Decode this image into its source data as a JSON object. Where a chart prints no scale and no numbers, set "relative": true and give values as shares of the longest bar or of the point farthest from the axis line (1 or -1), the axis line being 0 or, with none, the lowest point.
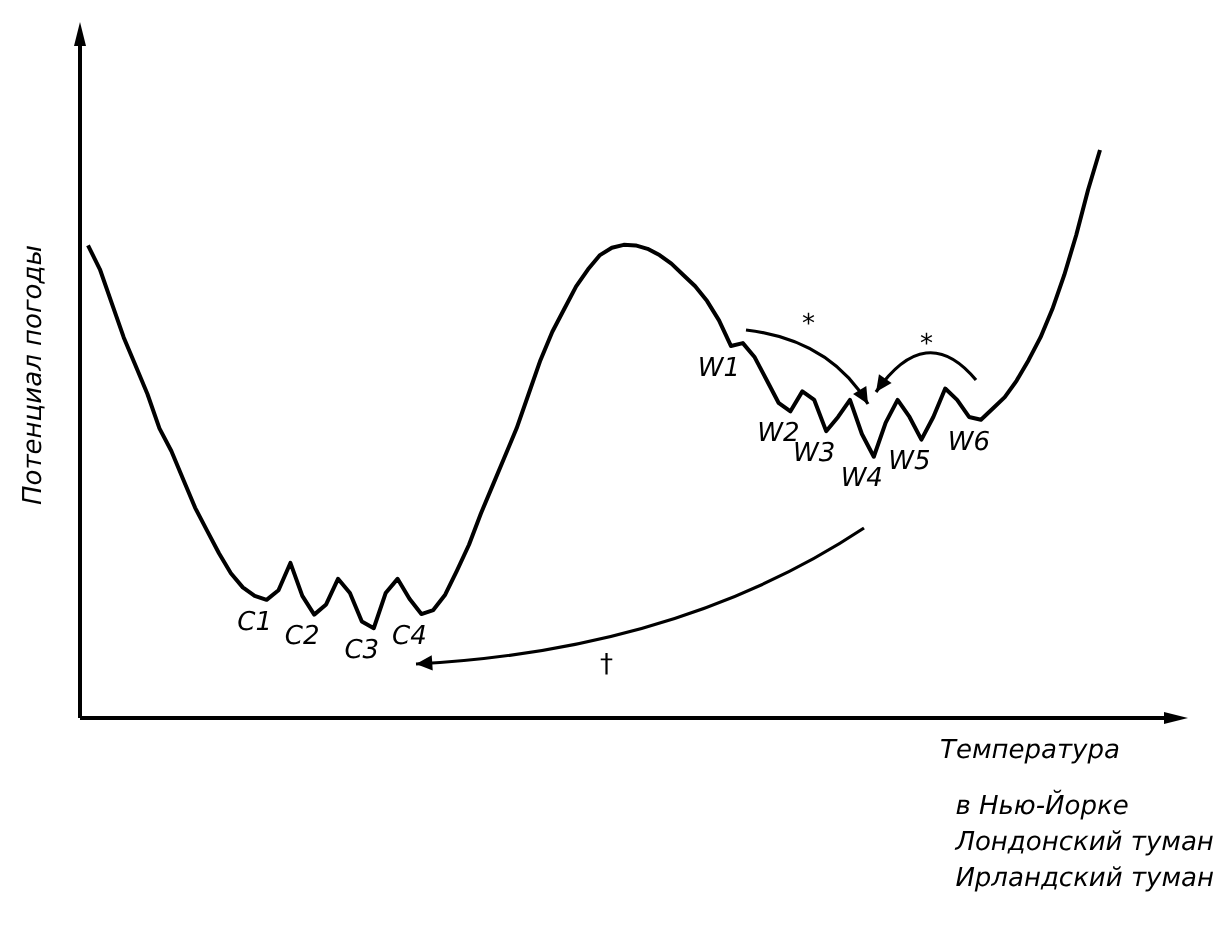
{
  "chart_data": {
    "type": "line",
    "relative": true,
    "ylabel": "Потенциал погоды",
    "xlabel": "Температура",
    "color": "#000000",
    "marker": "none",
    "line_style": "solid",
    "legend": false,
    "categories": [
      null,
      null,
      null,
      null,
      null,
      null,
      null,
      null,
      null,
      null,
      null,
      null,
      null,
      null,
      null,
      null,
      null,
      null,
      null,
      null,
      null,
      null,
      null,
      null,
      null,
      null,
      null,
      null,
      null,
      null,
      null,
      null,
      null,
      null,
      null,
      null,
      null,
      null,
      null,
      null,
      null,
      null,
      null,
      null,
      null,
      null,
      null,
      null,
      null,
      null,
      null,
      null,
      null,
      null,
      null,
      null,
      null,
      null,
      null,
      null,
      null,
      null,
      null,
      null,
      null,
      null,
      null,
      null,
      null,
      null,
      null,
      null,
      null,
      null,
      null,
      null,
      null,
      null,
      null,
      null,
      null,
      null,
      null,
      null,
      null,
      null
    ],
    "values": [
      0.832,
      0.79,
      0.73,
      0.67,
      0.62,
      0.57,
      0.51,
      0.47,
      0.42,
      0.37,
      0.33,
      0.29,
      0.255,
      0.23,
      0.215,
      0.208,
      0.225,
      0.273,
      0.215,
      0.182,
      0.2,
      0.245,
      0.22,
      0.17,
      0.158,
      0.22,
      0.245,
      0.21,
      0.183,
      0.19,
      0.217,
      0.26,
      0.305,
      0.36,
      0.41,
      0.46,
      0.51,
      0.57,
      0.63,
      0.68,
      0.72,
      0.76,
      0.79,
      0.815,
      0.828,
      0.833,
      0.832,
      0.826,
      0.815,
      0.8,
      0.78,
      0.76,
      0.734,
      0.7,
      0.655,
      0.66,
      0.635,
      0.595,
      0.555,
      0.54,
      0.575,
      0.56,
      0.505,
      0.53,
      0.56,
      0.5,
      0.46,
      0.52,
      0.56,
      0.53,
      0.49,
      0.53,
      0.58,
      0.56,
      0.53,
      0.525,
      0.545,
      0.565,
      0.594,
      0.63,
      0.67,
      0.72,
      0.78,
      0.85,
      0.93,
      1.0
    ],
    "annotations": [
      "*",
      "*",
      "†",
      "в Нью-Йорке",
      "Лондонский туман",
      "Ирландский туман",
      {
        "text": "C1",
        "y": 0.208
      },
      {
        "text": "C2",
        "y": 0.182
      },
      {
        "text": "C3",
        "y": 0.158
      },
      {
        "text": "C4",
        "y": 0.183
      },
      {
        "text": "W1",
        "y": 0.655
      },
      {
        "text": "W2",
        "y": 0.54
      },
      {
        "text": "W3",
        "y": 0.505
      },
      {
        "text": "W4",
        "y": 0.46
      },
      {
        "text": "W5",
        "y": 0.49
      },
      {
        "text": "W6",
        "y": 0.525
      }
    ]
  }
}
